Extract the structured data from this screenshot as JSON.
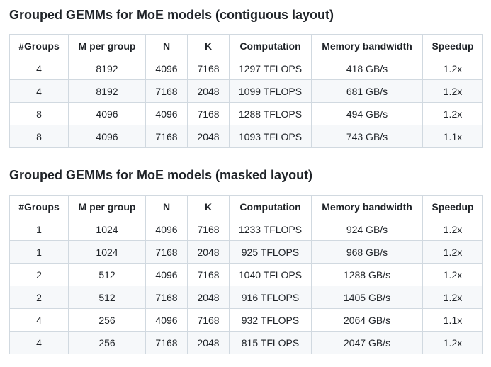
{
  "tables": [
    {
      "title": "Grouped GEMMs for MoE models (contiguous layout)",
      "headers": [
        "#Groups",
        "M per group",
        "N",
        "K",
        "Computation",
        "Memory bandwidth",
        "Speedup"
      ],
      "rows": [
        [
          "4",
          "8192",
          "4096",
          "7168",
          "1297 TFLOPS",
          "418 GB/s",
          "1.2x"
        ],
        [
          "4",
          "8192",
          "7168",
          "2048",
          "1099 TFLOPS",
          "681 GB/s",
          "1.2x"
        ],
        [
          "8",
          "4096",
          "4096",
          "7168",
          "1288 TFLOPS",
          "494 GB/s",
          "1.2x"
        ],
        [
          "8",
          "4096",
          "7168",
          "2048",
          "1093 TFLOPS",
          "743 GB/s",
          "1.1x"
        ]
      ]
    },
    {
      "title": "Grouped GEMMs for MoE models (masked layout)",
      "headers": [
        "#Groups",
        "M per group",
        "N",
        "K",
        "Computation",
        "Memory bandwidth",
        "Speedup"
      ],
      "rows": [
        [
          "1",
          "1024",
          "4096",
          "7168",
          "1233 TFLOPS",
          "924 GB/s",
          "1.2x"
        ],
        [
          "1",
          "1024",
          "7168",
          "2048",
          "925 TFLOPS",
          "968 GB/s",
          "1.2x"
        ],
        [
          "2",
          "512",
          "4096",
          "7168",
          "1040 TFLOPS",
          "1288 GB/s",
          "1.2x"
        ],
        [
          "2",
          "512",
          "7168",
          "2048",
          "916 TFLOPS",
          "1405 GB/s",
          "1.2x"
        ],
        [
          "4",
          "256",
          "4096",
          "7168",
          "932 TFLOPS",
          "2064 GB/s",
          "1.1x"
        ],
        [
          "4",
          "256",
          "7168",
          "2048",
          "815 TFLOPS",
          "2047 GB/s",
          "1.2x"
        ]
      ]
    }
  ]
}
